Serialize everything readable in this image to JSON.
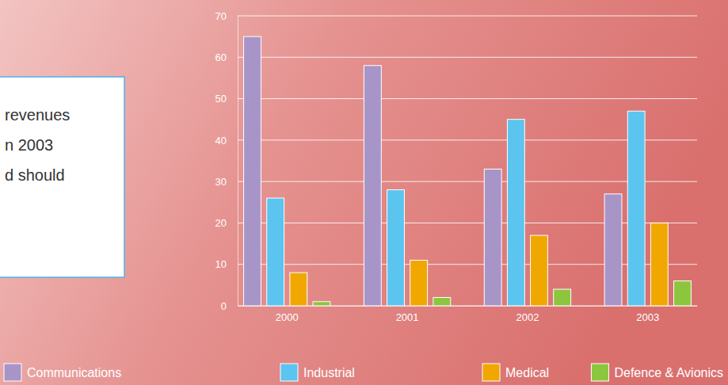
{
  "chart_data": {
    "type": "bar",
    "annotations": [
      "revenues",
      "n 2003",
      "d should"
    ],
    "categories": [
      "2000",
      "2001",
      "2002",
      "2003"
    ],
    "series": [
      {
        "name": "Communications",
        "color": "#a895c8",
        "values": [
          65,
          58,
          33,
          27
        ]
      },
      {
        "name": "Industrial",
        "color": "#5bc4ef",
        "values": [
          26,
          28,
          45,
          47
        ]
      },
      {
        "name": "Medical",
        "color": "#f0a800",
        "values": [
          8,
          11,
          17,
          20
        ]
      },
      {
        "name": "Defence & Avionics",
        "color": "#8cc63f",
        "values": [
          1,
          2,
          4,
          6
        ]
      }
    ],
    "ylim": [
      0,
      70
    ],
    "yticks": [
      0,
      10,
      20,
      30,
      40,
      50,
      60,
      70
    ],
    "grid": true,
    "legend": "bottom"
  }
}
